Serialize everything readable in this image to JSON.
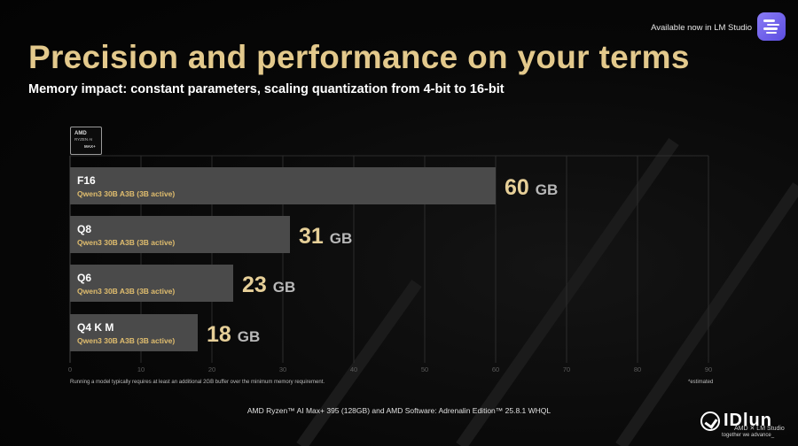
{
  "header": {
    "title": "Precision and performance on your terms",
    "subtitle": "Memory impact: constant parameters, scaling quantization from 4-bit to 16-bit"
  },
  "topbar": {
    "availability_text": "Available now in LM Studio",
    "app_icon": "lm-studio-icon"
  },
  "badge": {
    "brand": "AMD",
    "line2": "RYZEN AI",
    "line3": "MAX+"
  },
  "chart_data": {
    "type": "bar",
    "orientation": "horizontal",
    "categories": [
      "F16",
      "Q8",
      "Q6",
      "Q4 K M"
    ],
    "sublabels": [
      "Qwen3 30B A3B (3B active)",
      "Qwen3 30B A3B (3B active)",
      "Qwen3 30B A3B (3B active)",
      "Qwen3 30B A3B (3B active)"
    ],
    "values": [
      60,
      31,
      23,
      18
    ],
    "value_unit": "GB",
    "xlim": [
      0,
      90
    ],
    "xticks": [
      0,
      10,
      20,
      30,
      40,
      50,
      60,
      70,
      80,
      90
    ],
    "grid": true,
    "bar_color": "#4a4a4a",
    "value_color": "#e6cf98",
    "sublabel_color": "#e0bd6e"
  },
  "notes": {
    "footnote": "Running a model typically requires at least an additional 2GB buffer over the minimum memory requirement.",
    "estimated": "*estimated",
    "caption": "AMD Ryzen™ AI Max+ 395 (128GB) and AMD Software: Adrenalin Edition™ 25.8.1 WHQL"
  },
  "watermark": {
    "brand": "IDlun",
    "overlay": "AMD ✕ LM Studio",
    "tagline": "together we advance_"
  },
  "colors": {
    "title": "#e3c98c",
    "background": "#060606"
  }
}
